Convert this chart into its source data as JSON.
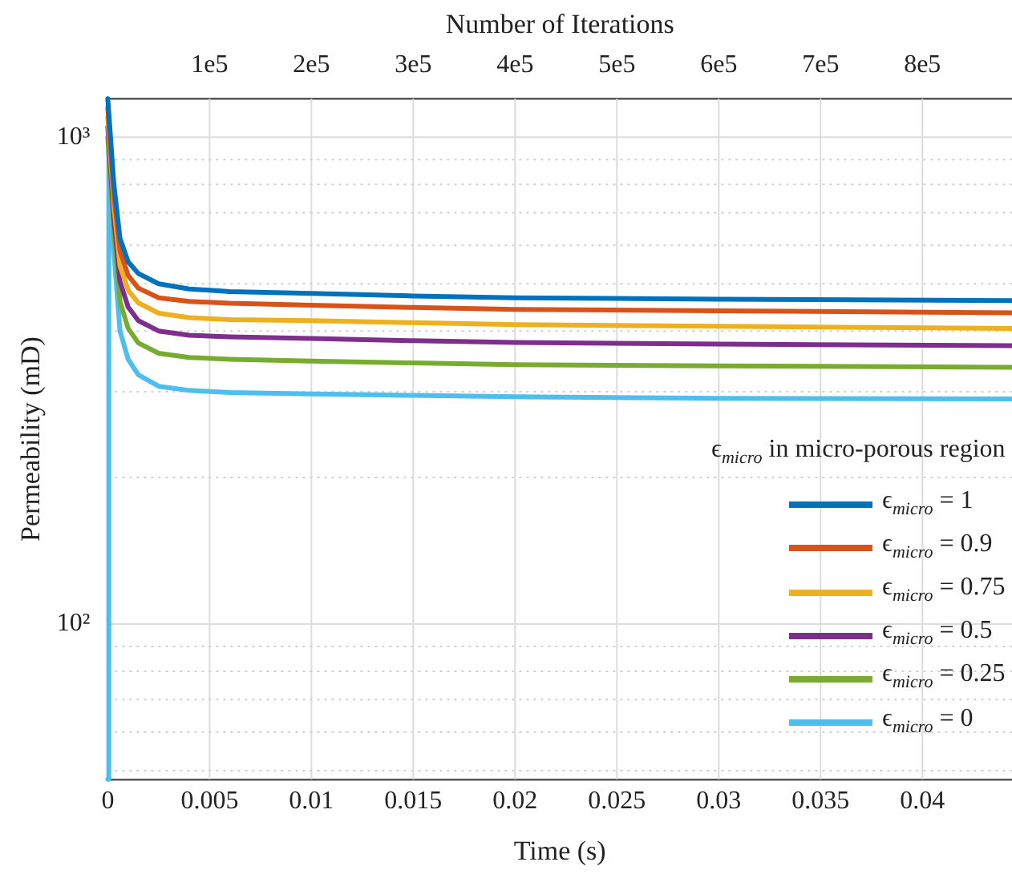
{
  "chart_data": {
    "type": "line",
    "xlabel": "Time (s)",
    "ylabel": "Permeability (mD)",
    "x2label": "Number of Iterations",
    "legend_title": "ϵ$_{micro}$ in micro-porous region",
    "legend": "right",
    "grid": true,
    "log": "y",
    "marker": "none",
    "line_style": "solid",
    "xlim": [
      0,
      0.0444
    ],
    "xticks": [
      0,
      0.005,
      0.01,
      0.015,
      0.02,
      0.025,
      0.03,
      0.035,
      0.04
    ],
    "x2lim": [
      0,
      888000
    ],
    "x2ticks": [
      {
        "value": 100000,
        "label": "1e5"
      },
      {
        "value": 200000,
        "label": "2e5"
      },
      {
        "value": 300000,
        "label": "3e5"
      },
      {
        "value": 400000,
        "label": "4e5"
      },
      {
        "value": 500000,
        "label": "5e5"
      },
      {
        "value": 600000,
        "label": "6e5"
      },
      {
        "value": 700000,
        "label": "7e5"
      },
      {
        "value": 800000,
        "label": "8e5"
      }
    ],
    "ylim": [
      48,
      1200
    ],
    "yticks": [
      {
        "value": 50,
        "label": null
      },
      {
        "value": 60,
        "label": null
      },
      {
        "value": 70,
        "label": null
      },
      {
        "value": 80,
        "label": null
      },
      {
        "value": 90,
        "label": null
      },
      {
        "value": 100,
        "label": "10²"
      },
      {
        "value": 200,
        "label": null
      },
      {
        "value": 300,
        "label": null
      },
      {
        "value": 400,
        "label": null
      },
      {
        "value": 500,
        "label": null
      },
      {
        "value": 600,
        "label": null
      },
      {
        "value": 700,
        "label": null
      },
      {
        "value": 800,
        "label": null
      },
      {
        "value": 900,
        "label": null
      },
      {
        "value": 1000,
        "label": "10³"
      }
    ],
    "x": [
      0,
      0.0003,
      0.0006,
      0.001,
      0.0015,
      0.0025,
      0.004,
      0.006,
      0.01,
      0.015,
      0.02,
      0.03,
      0.0444
    ],
    "series": [
      {
        "name": "ϵ$_{micro}$ = 1",
        "color": "#0072bd",
        "values": [
          1200,
          800,
          620,
          555,
          525,
          500,
          488,
          482,
          478,
          472,
          468,
          465,
          462
        ]
      },
      {
        "name": "ϵ$_{micro}$ = 0.9",
        "color": "#d95319",
        "values": [
          1150,
          760,
          585,
          520,
          490,
          468,
          460,
          456,
          452,
          447,
          443,
          440,
          436
        ]
      },
      {
        "name": "ϵ$_{micro}$ = 0.75",
        "color": "#edb120",
        "values": [
          1100,
          720,
          545,
          485,
          457,
          435,
          426,
          422,
          420,
          416,
          412,
          409,
          405
        ]
      },
      {
        "name": "ϵ$_{micro}$ = 0.5",
        "color": "#7e2f8e",
        "values": [
          1050,
          680,
          505,
          448,
          420,
          400,
          392,
          389,
          386,
          382,
          379,
          376,
          373
        ]
      },
      {
        "name": "ϵ$_{micro}$ = 0.25",
        "color": "#77ac30",
        "values": [
          1000,
          640,
          460,
          405,
          378,
          360,
          353,
          350,
          347,
          344,
          341,
          339,
          337
        ]
      },
      {
        "name": "ϵ$_{micro}$ = 0",
        "color": "#4dbeee",
        "x": [
          0,
          5e-05,
          0.0003,
          0.0006,
          0.001,
          0.0015,
          0.0025,
          0.004,
          0.006,
          0.01,
          0.015,
          0.02,
          0.03,
          0.0444
        ],
        "values": [
          48,
          940,
          580,
          400,
          350,
          325,
          308,
          302,
          299,
          297,
          295,
          293,
          291,
          290
        ]
      }
    ]
  }
}
